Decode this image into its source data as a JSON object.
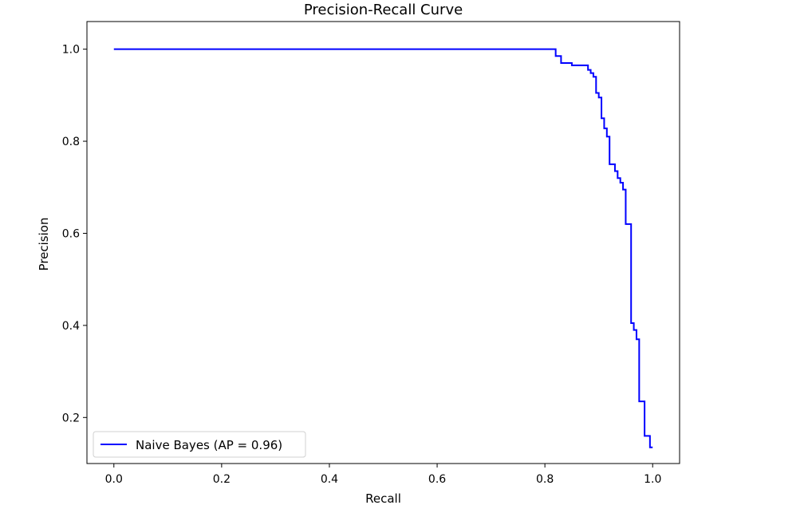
{
  "chart_data": {
    "type": "line",
    "title": "Precision-Recall Curve",
    "xlabel": "Recall",
    "ylabel": "Precision",
    "xlim": [
      -0.05,
      1.05
    ],
    "ylim": [
      0.1,
      1.06
    ],
    "xticks": [
      "0.0",
      "0.2",
      "0.4",
      "0.6",
      "0.8",
      "1.0"
    ],
    "yticks": [
      "0.2",
      "0.4",
      "0.6",
      "0.8",
      "1.0"
    ],
    "grid": false,
    "legend_position": "lower-left",
    "series": [
      {
        "name": "Naive Bayes (AP = 0.96)",
        "color": "#0000ff",
        "drawstyle": "steps",
        "x": [
          0.0,
          0.82,
          0.82,
          0.83,
          0.83,
          0.85,
          0.85,
          0.88,
          0.88,
          0.885,
          0.885,
          0.89,
          0.89,
          0.895,
          0.895,
          0.9,
          0.9,
          0.905,
          0.905,
          0.91,
          0.91,
          0.915,
          0.915,
          0.92,
          0.92,
          0.93,
          0.93,
          0.935,
          0.935,
          0.94,
          0.94,
          0.945,
          0.945,
          0.95,
          0.95,
          0.96,
          0.96,
          0.965,
          0.965,
          0.97,
          0.97,
          0.975,
          0.975,
          0.98,
          0.98,
          0.985,
          0.985,
          0.99,
          0.99,
          0.995,
          0.995,
          1.0,
          1.0
        ],
        "y": [
          1.0,
          1.0,
          0.985,
          0.985,
          0.97,
          0.97,
          0.965,
          0.965,
          0.955,
          0.955,
          0.948,
          0.948,
          0.94,
          0.94,
          0.905,
          0.905,
          0.895,
          0.895,
          0.85,
          0.85,
          0.828,
          0.828,
          0.81,
          0.81,
          0.75,
          0.75,
          0.735,
          0.735,
          0.72,
          0.72,
          0.71,
          0.71,
          0.695,
          0.695,
          0.62,
          0.62,
          0.405,
          0.405,
          0.39,
          0.39,
          0.37,
          0.37,
          0.235,
          0.235,
          0.235,
          0.235,
          0.16,
          0.16,
          0.16,
          0.16,
          0.135,
          0.135,
          0.135
        ]
      }
    ]
  }
}
